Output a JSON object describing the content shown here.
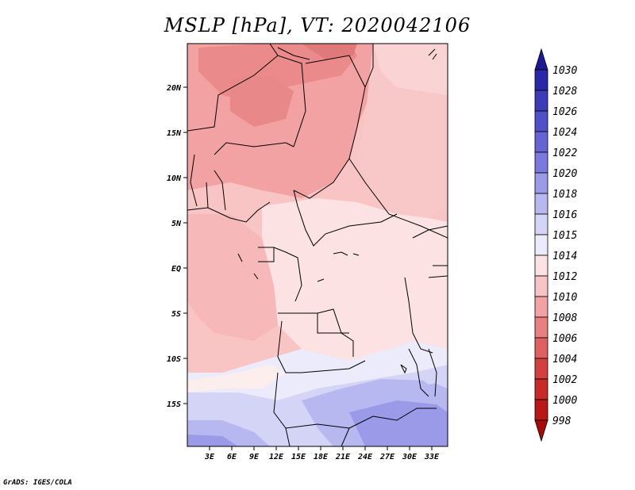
{
  "title": "MSLP [hPa], VT: 2020042106",
  "credit": "GrADS: IGES/COLA",
  "map": {
    "lat_labels": [
      "20N",
      "15N",
      "10N",
      "5N",
      "EQ",
      "5S",
      "10S",
      "15S"
    ],
    "lon_labels": [
      "3E",
      "6E",
      "9E",
      "12E",
      "15E",
      "18E",
      "21E",
      "24E",
      "27E",
      "30E",
      "33E"
    ]
  },
  "colorbar": {
    "levels": [
      "1030",
      "1028",
      "1026",
      "1024",
      "1022",
      "1020",
      "1018",
      "1016",
      "1015",
      "1014",
      "1012",
      "1010",
      "1008",
      "1006",
      "1004",
      "1002",
      "1000",
      "998"
    ],
    "colors": [
      "#1a1a96",
      "#2828a8",
      "#3c3cb8",
      "#5050c8",
      "#6464d2",
      "#7a7ade",
      "#9a9ae8",
      "#b8b8f0",
      "#d4d4f6",
      "#ebebfb",
      "#fce2e2",
      "#f8c4c4",
      "#f2a2a2",
      "#e88080",
      "#de6060",
      "#d44040",
      "#c82a2a",
      "#b81818",
      "#a80a0a"
    ]
  }
}
